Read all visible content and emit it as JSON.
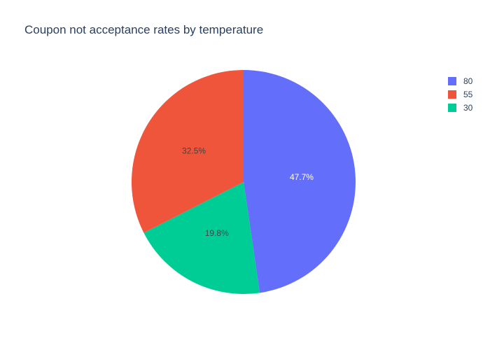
{
  "chart_data": {
    "type": "pie",
    "title": "Coupon not acceptance rates by temperature",
    "slices": [
      {
        "label": "80",
        "value": 47.7,
        "text": "47.7%",
        "color": "#636efa",
        "text_color": "#ffffff"
      },
      {
        "label": "30",
        "value": 19.8,
        "text": "19.8%",
        "color": "#00cc96",
        "text_color": "#444444"
      },
      {
        "label": "55",
        "value": 32.5,
        "text": "32.5%",
        "color": "#ef553b",
        "text_color": "#444444"
      }
    ],
    "legend": {
      "placement": "top-right",
      "items": [
        {
          "label": "80",
          "color": "#636efa"
        },
        {
          "label": "55",
          "color": "#ef553b"
        },
        {
          "label": "30",
          "color": "#00cc96"
        }
      ]
    }
  }
}
